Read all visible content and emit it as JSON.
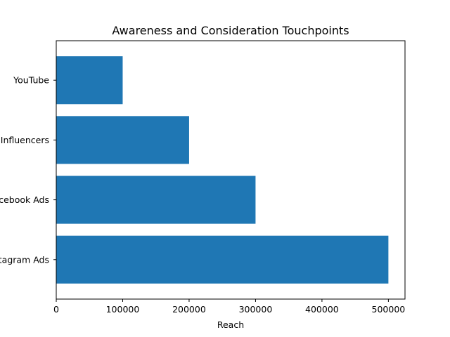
{
  "chart_data": {
    "type": "bar",
    "orientation": "horizontal",
    "title": "Awareness and Consideration Touchpoints",
    "xlabel": "Reach",
    "ylabel": "",
    "categories": [
      "Instagram Ads",
      "Facebook Ads",
      "Influencers",
      "YouTube"
    ],
    "values": [
      500000,
      300000,
      200000,
      100000
    ],
    "xlim": [
      0,
      525000
    ],
    "xticks": [
      0,
      100000,
      200000,
      300000,
      400000,
      500000
    ],
    "xtick_labels": [
      "0",
      "100000",
      "200000",
      "300000",
      "400000",
      "500000"
    ],
    "bar_color": "#1f77b4",
    "grid": false,
    "legend": "none"
  }
}
